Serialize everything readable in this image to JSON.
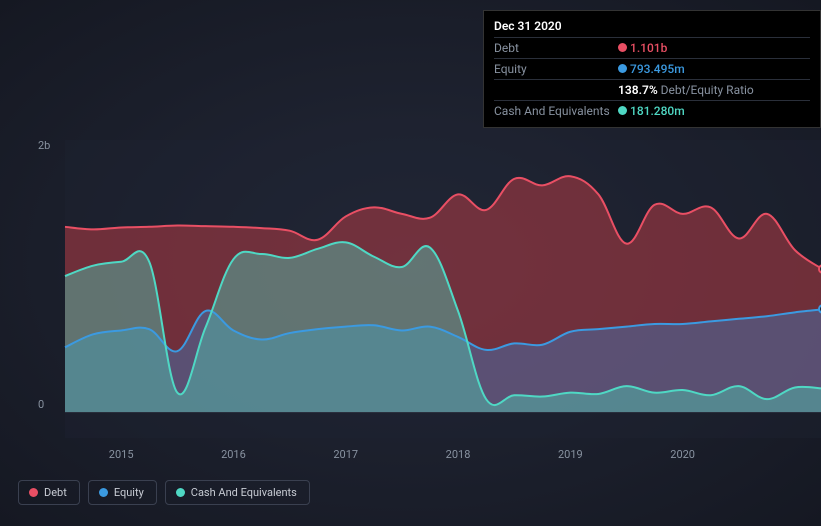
{
  "chart": {
    "type": "area",
    "background_color": "#1a1f2e",
    "plot_background": "rgba(30,35,50,0.4)",
    "y_axis": {
      "labels": [
        {
          "text": "2b",
          "value": 2000
        },
        {
          "text": "0",
          "value": 0
        }
      ],
      "ymin": -200,
      "ymax": 2100,
      "currency_prefix": ""
    },
    "x_axis": {
      "labels": [
        "2015",
        "2016",
        "2017",
        "2018",
        "2019",
        "2020"
      ],
      "xmin": 0,
      "xmax": 27,
      "tick_positions": [
        2,
        6,
        10,
        14,
        18,
        22
      ]
    },
    "series": [
      {
        "name": "Debt",
        "color": "#e94f64",
        "fill": "rgba(180,60,70,0.55)",
        "line_width": 2,
        "data": [
          1430,
          1410,
          1425,
          1430,
          1440,
          1435,
          1430,
          1420,
          1400,
          1330,
          1510,
          1580,
          1530,
          1500,
          1680,
          1560,
          1800,
          1750,
          1820,
          1680,
          1300,
          1600,
          1530,
          1580,
          1340,
          1530,
          1250,
          1101
        ]
      },
      {
        "name": "Equity",
        "color": "#3b9ae1",
        "fill": "rgba(60,130,200,0.4)",
        "line_width": 2,
        "data": [
          500,
          600,
          630,
          640,
          470,
          780,
          630,
          560,
          610,
          640,
          660,
          670,
          630,
          660,
          580,
          480,
          530,
          520,
          620,
          640,
          660,
          680,
          680,
          700,
          720,
          740,
          770,
          793
        ]
      },
      {
        "name": "Cash And Equivalents",
        "color": "#4fd8c4",
        "fill": "rgba(80,200,180,0.45)",
        "line_width": 2,
        "data": [
          1050,
          1130,
          1160,
          1160,
          150,
          650,
          1180,
          1220,
          1190,
          1260,
          1310,
          1200,
          1120,
          1270,
          780,
          100,
          130,
          120,
          150,
          140,
          200,
          150,
          170,
          130,
          200,
          100,
          190,
          181
        ]
      }
    ],
    "end_markers": [
      {
        "series": 0,
        "color": "#e94f64"
      },
      {
        "series": 1,
        "color": "#3b9ae1"
      }
    ]
  },
  "tooltip": {
    "date": "Dec 31 2020",
    "rows": [
      {
        "label": "Debt",
        "value": "1.101b",
        "color": "#e94f64"
      },
      {
        "label": "Equity",
        "value": "793.495m",
        "color": "#3b9ae1"
      }
    ],
    "ratio": {
      "value": "138.7%",
      "label": "Debt/Equity Ratio"
    },
    "extra": [
      {
        "label": "Cash And Equivalents",
        "value": "181.280m",
        "color": "#4fd8c4"
      }
    ]
  },
  "legend": {
    "items": [
      {
        "label": "Debt",
        "color": "#e94f64"
      },
      {
        "label": "Equity",
        "color": "#3b9ae1"
      },
      {
        "label": "Cash And Equivalents",
        "color": "#4fd8c4"
      }
    ]
  }
}
